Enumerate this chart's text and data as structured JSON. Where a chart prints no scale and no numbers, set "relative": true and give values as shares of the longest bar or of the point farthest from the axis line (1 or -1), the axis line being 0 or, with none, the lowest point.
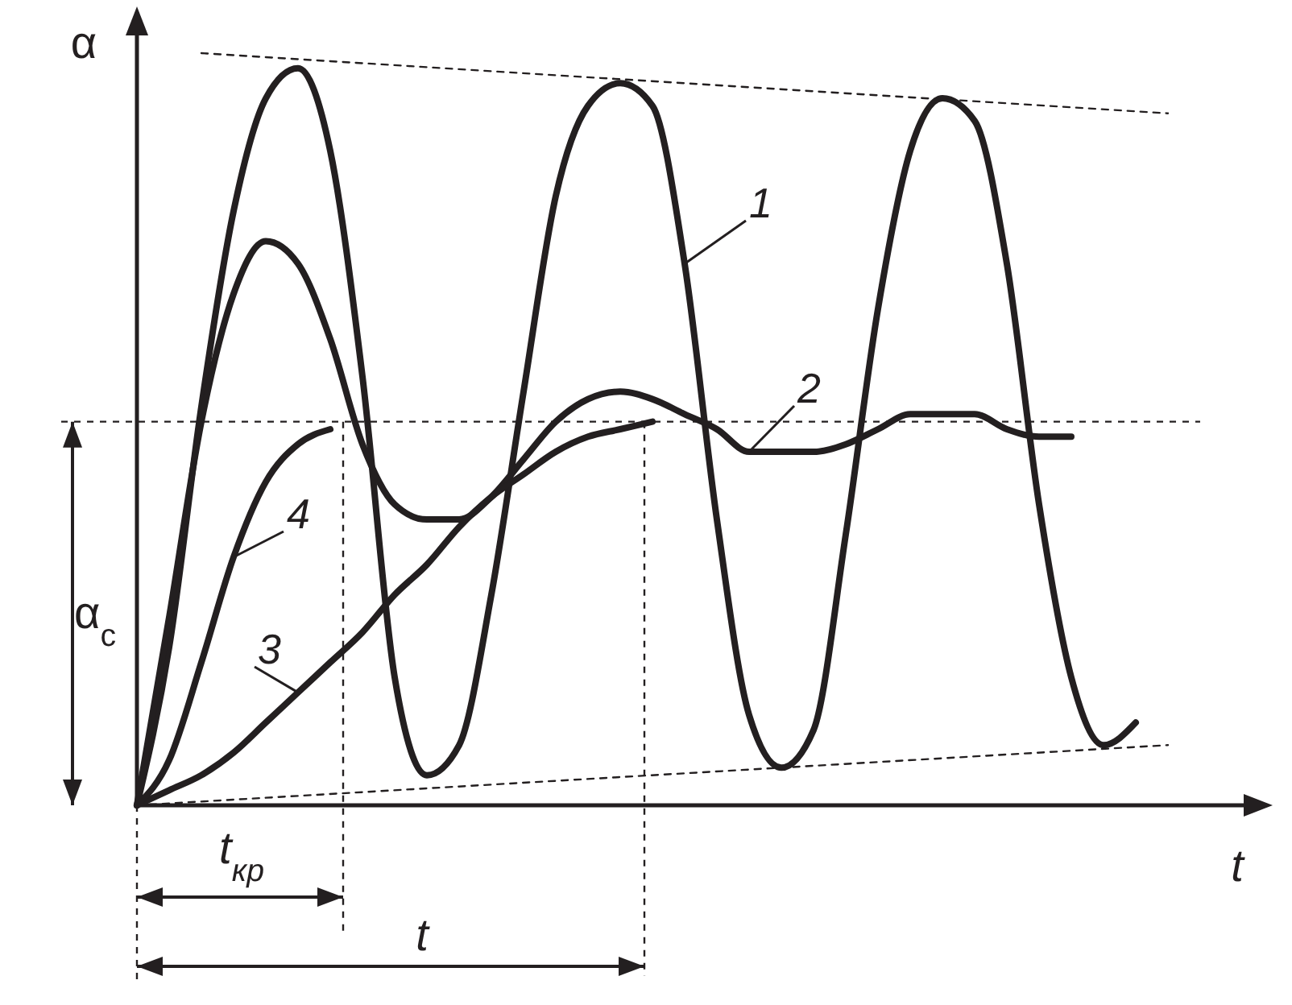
{
  "chart_data": {
    "type": "line",
    "relative": true,
    "xlabel": "t",
    "ylabel": "α",
    "categories": [
      null,
      null,
      null,
      null,
      null,
      null,
      null,
      null,
      null,
      null,
      null,
      null,
      null,
      null,
      null,
      null,
      null,
      null,
      null,
      null,
      null,
      null,
      null,
      null,
      null,
      null,
      null,
      null,
      null,
      null,
      null,
      null,
      null,
      null,
      null
    ],
    "series": [
      {
        "name": "1",
        "color": "#231f20",
        "values": [
          0,
          0.21,
          0.53,
          0.79,
          0.94,
          0.98,
          0.87,
          0.57,
          0.17,
          0.04,
          0.08,
          0.28,
          0.55,
          0.81,
          0.93,
          0.96,
          0.93,
          0.72,
          0.38,
          0.12,
          0.05,
          0.1,
          0.36,
          0.66,
          0.87,
          0.94,
          0.91,
          0.72,
          0.4,
          0.17,
          0.08,
          0.11,
          null,
          null,
          null
        ]
      },
      {
        "name": "2",
        "color": "#231f20",
        "values": [
          0,
          0.25,
          0.51,
          0.68,
          0.75,
          0.72,
          0.62,
          0.48,
          0.4,
          0.38,
          0.38,
          0.41,
          0.46,
          0.51,
          0.54,
          0.55,
          0.54,
          0.52,
          0.5,
          0.47,
          0.47,
          0.47,
          0.48,
          0.5,
          0.52,
          0.52,
          0.52,
          0.5,
          0.49,
          0.49,
          null,
          null,
          null,
          null,
          null
        ]
      },
      {
        "name": "3",
        "color": "#231f20",
        "values": [
          0,
          0.02,
          0.04,
          0.07,
          0.11,
          0.15,
          0.19,
          0.23,
          0.28,
          0.32,
          0.37,
          0.41,
          0.44,
          0.47,
          0.49,
          0.5,
          0.51,
          null,
          null,
          null,
          null,
          null,
          null,
          null,
          null,
          null,
          null,
          null,
          null,
          null,
          null,
          null,
          null,
          null,
          null
        ]
      },
      {
        "name": "4",
        "color": "#231f20",
        "values": [
          0,
          0.06,
          0.19,
          0.33,
          0.43,
          0.48,
          0.5,
          null,
          null,
          null,
          null,
          null,
          null,
          null,
          null,
          null,
          null,
          null,
          null,
          null,
          null,
          null,
          null,
          null,
          null,
          null,
          null,
          null,
          null,
          null,
          null,
          null,
          null,
          null,
          null
        ]
      },
      {
        "color": "#231f20",
        "line_style": "dashed",
        "values": [
          null,
          null,
          1,
          null,
          null,
          null,
          null,
          null,
          null,
          null,
          null,
          null,
          null,
          null,
          null,
          null,
          null,
          null,
          null,
          null,
          null,
          null,
          null,
          null,
          null,
          null,
          null,
          null,
          null,
          null,
          null,
          null,
          0.92,
          null,
          null
        ]
      },
      {
        "color": "#231f20",
        "line_style": "dashed",
        "values": [
          0,
          null,
          null,
          null,
          null,
          null,
          null,
          null,
          null,
          null,
          null,
          null,
          null,
          null,
          null,
          null,
          null,
          null,
          null,
          null,
          null,
          null,
          null,
          null,
          null,
          null,
          null,
          null,
          null,
          null,
          null,
          null,
          0.08,
          null,
          null
        ]
      }
    ],
    "ref_lines": [
      {
        "axis": "y",
        "value": 0.51,
        "line_style": "dashed"
      }
    ],
    "annotations": [
      "α$_{c}$",
      "t$_{кр}$",
      "t"
    ]
  }
}
